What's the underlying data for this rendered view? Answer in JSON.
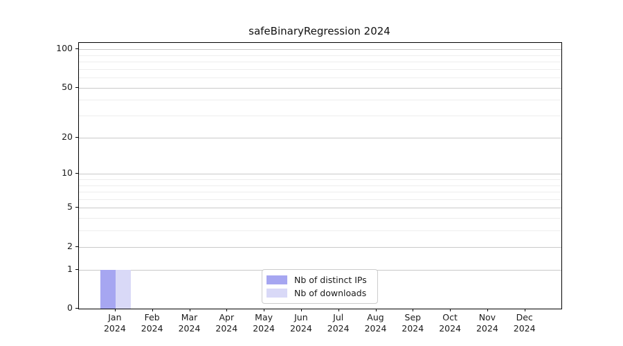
{
  "figure": {
    "title": "safeBinaryRegression 2024"
  },
  "legend": {
    "items": [
      {
        "label": "Nb of distinct IPs",
        "color": "#a6a6f1"
      },
      {
        "label": "Nb of downloads",
        "color": "#d9d9f7"
      }
    ]
  },
  "colors": {
    "distinct_ips": "#a6a6f1",
    "downloads": "#d9d9f7",
    "grid_major": "#c9c9c9",
    "grid_minor": "#ededed",
    "axis": "#000000",
    "legend_border": "#cccccc"
  },
  "chart_data": {
    "type": "bar",
    "title": "safeBinaryRegression 2024",
    "categories": [
      "Jan 2024",
      "Feb 2024",
      "Mar 2024",
      "Apr 2024",
      "May 2024",
      "Jun 2024",
      "Jul 2024",
      "Aug 2024",
      "Sep 2024",
      "Oct 2024",
      "Nov 2024",
      "Dec 2024"
    ],
    "x_tick_month_labels": [
      "Jan",
      "Feb",
      "Mar",
      "Apr",
      "May",
      "Jun",
      "Jul",
      "Aug",
      "Sep",
      "Oct",
      "Nov",
      "Dec"
    ],
    "x_tick_year_label": "2024",
    "series": [
      {
        "name": "Nb of distinct IPs",
        "color": "#a6a6f1",
        "values": [
          1,
          0,
          0,
          0,
          0,
          0,
          0,
          0,
          0,
          0,
          0,
          0
        ]
      },
      {
        "name": "Nb of downloads",
        "color": "#d9d9f7",
        "values": [
          1,
          0,
          0,
          0,
          0,
          0,
          0,
          0,
          0,
          0,
          0,
          0
        ]
      }
    ],
    "yscale": "log1p",
    "y_ticks": [
      0,
      1,
      2,
      5,
      10,
      20,
      50,
      100
    ],
    "y_tick_labels": [
      "0",
      "1",
      "2",
      "5",
      "10",
      "20",
      "50",
      "100"
    ],
    "y_minor_ticks": [
      3,
      4,
      6,
      7,
      8,
      9,
      30,
      40,
      60,
      70,
      80,
      90
    ],
    "ylim": [
      0,
      112
    ],
    "xlabel": "",
    "ylabel": "",
    "grid": true,
    "legend_position": "lower center"
  }
}
